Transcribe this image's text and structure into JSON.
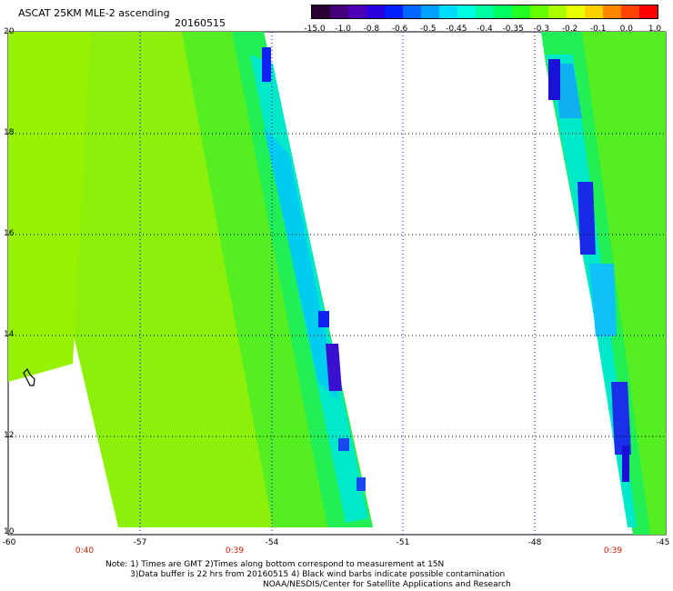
{
  "header": {
    "title": "ASCAT 25KM MLE-2 ascending",
    "date": "20160515"
  },
  "colorbar": {
    "colors": [
      "#2a0033",
      "#44007a",
      "#4b00b8",
      "#2a00e0",
      "#0020ff",
      "#0066ff",
      "#00a0ff",
      "#00dcff",
      "#00ffe0",
      "#00ffa0",
      "#00ff60",
      "#22ff22",
      "#66ff00",
      "#aaff00",
      "#e8ff00",
      "#ffd000",
      "#ff8800",
      "#ff4400",
      "#ff0000"
    ],
    "tick_labels": [
      "-15.0",
      "-1.0",
      "-0.8",
      "-0.6",
      "-0.5",
      "-0.45",
      "-0.4",
      "-0.35",
      "-0.3",
      "-0.2",
      "-0.1",
      "0.0",
      "1.0"
    ]
  },
  "axes": {
    "lat_labels": [
      "20",
      "18",
      "16",
      "14",
      "12",
      "10"
    ],
    "lon_labels": [
      "-60",
      "-57",
      "-54",
      "-51",
      "-48",
      "-45"
    ],
    "time_labels": [
      "0:40",
      "0:39",
      "0:39"
    ]
  },
  "footer": {
    "note_line1": "Note: 1) Times are GMT 2)Times along bottom correspond to measurement at 15N",
    "note_line2": "3)Data buffer is 22 hrs from 20160515 4) Black wind barbs indicate possible contamination",
    "credit": "NOAA/NESDIS/Center for Satellite Applications and Research"
  },
  "colors": {
    "grid_black": "#000000",
    "grid_blue": "#0000ff",
    "time_label": "#cc2200"
  }
}
